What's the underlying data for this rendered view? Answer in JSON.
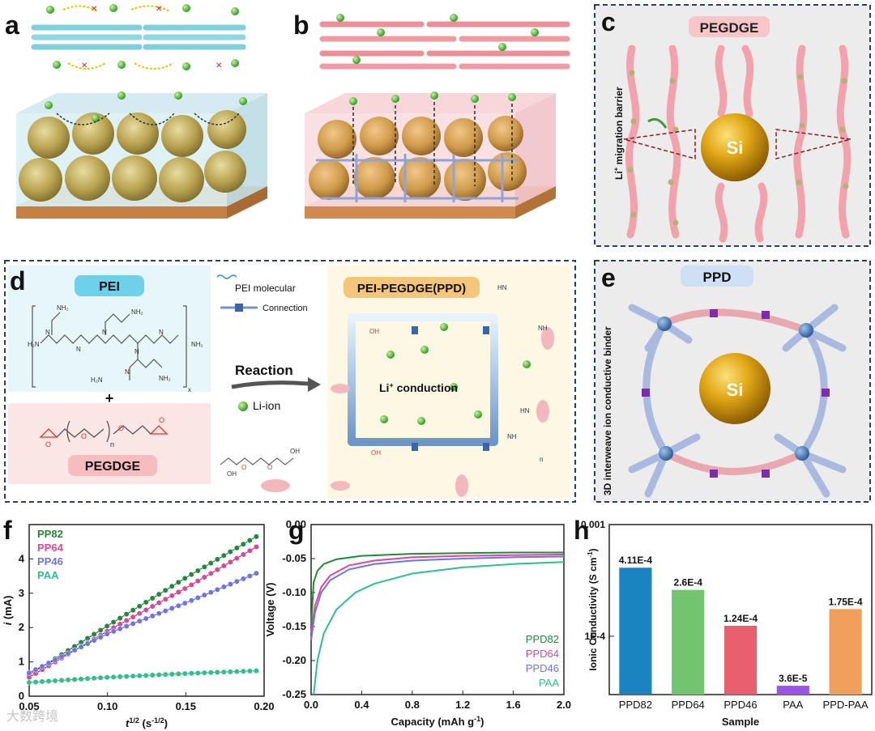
{
  "panels": {
    "a": {
      "label": "a"
    },
    "b": {
      "label": "b"
    },
    "c": {
      "label": "c",
      "title": "PEGDGE",
      "barrier_label": "Li",
      "barrier_sup": "+",
      "barrier_rest": " migration barrier",
      "particle": "Si"
    },
    "d": {
      "label": "d",
      "pei_title": "PEI",
      "plus": "+",
      "pegdge_title": "PEGDGE",
      "n_sub": "n",
      "legend_pei": "PEI molecular",
      "legend_connection": "Connection",
      "reaction": "Reaction",
      "li_ion": "Li-ion",
      "ppd_title": "PEI-PEGDGE(PPD)",
      "conduction": "Li",
      "conduction_sup": "+",
      "conduction_rest": " conduction",
      "nh2": "NH₂",
      "h2n": "H₂N",
      "n": "N",
      "nh": "NH",
      "hn": "HN",
      "oh": "OH",
      "o": "O",
      "sub_x": "x"
    },
    "e": {
      "label": "e",
      "title": "PPD",
      "side_text": "3D interweave ion conductive binder",
      "particle": "Si"
    }
  },
  "chart_data": [
    {
      "panel": "f",
      "type": "scatter",
      "xlabel_main": "t",
      "xlabel_sup": "1/2",
      "xlabel_unit": " (s",
      "xlabel_unit_sup": "-1/2",
      "xlabel_close": ")",
      "ylabel_main": "i",
      "ylabel_unit": " (mA)",
      "xlim": [
        0.05,
        0.2
      ],
      "ylim": [
        0,
        5
      ],
      "x_ticks": [
        "0.05",
        "0.10",
        "0.15",
        "0.20"
      ],
      "y_ticks": [
        "0",
        "1",
        "2",
        "3",
        "4"
      ],
      "series": [
        {
          "name": "PP82",
          "color": "#1f8a3a",
          "x": [
            0.05,
            0.1,
            0.15,
            0.195
          ],
          "values": [
            0.62,
            2.05,
            3.45,
            4.65
          ]
        },
        {
          "name": "PP64",
          "color": "#e0449a",
          "x": [
            0.05,
            0.1,
            0.15,
            0.195
          ],
          "values": [
            0.55,
            1.9,
            3.15,
            4.35
          ]
        },
        {
          "name": "PP46",
          "color": "#6f73e6",
          "x": [
            0.05,
            0.1,
            0.15,
            0.195
          ],
          "values": [
            0.68,
            1.82,
            2.72,
            3.58
          ]
        },
        {
          "name": "PAA",
          "color": "#2ec08a",
          "x": [
            0.05,
            0.1,
            0.15,
            0.195
          ],
          "values": [
            0.4,
            0.55,
            0.66,
            0.74
          ]
        }
      ]
    },
    {
      "panel": "g",
      "type": "line",
      "xlabel": "Capacity (mAh g",
      "xlabel_sup": "-1",
      "xlabel_close": ")",
      "ylabel": "Voltage (V)",
      "xlim": [
        0.0,
        2.0
      ],
      "ylim": [
        -0.25,
        0.0
      ],
      "x_ticks": [
        "0.0",
        "0.4",
        "0.8",
        "1.2",
        "1.6",
        "2.0"
      ],
      "y_ticks": [
        "0.00",
        "-0.05",
        "-0.10",
        "-0.15",
        "-0.20",
        "-0.25"
      ],
      "series": [
        {
          "name": "PPD82",
          "color": "#1f8a3a",
          "x": [
            0,
            0.02,
            0.05,
            0.1,
            0.2,
            0.4,
            0.8,
            1.2,
            1.6,
            2.0
          ],
          "values": [
            -0.15,
            -0.085,
            -0.068,
            -0.058,
            -0.051,
            -0.046,
            -0.043,
            -0.042,
            -0.041,
            -0.041
          ]
        },
        {
          "name": "PPD64",
          "color": "#e0449a",
          "x": [
            0,
            0.03,
            0.08,
            0.15,
            0.3,
            0.5,
            0.8,
            1.2,
            1.6,
            2.0
          ],
          "values": [
            -0.16,
            -0.12,
            -0.092,
            -0.075,
            -0.06,
            -0.053,
            -0.048,
            -0.046,
            -0.045,
            -0.044
          ]
        },
        {
          "name": "PPD46",
          "color": "#6f73e6",
          "x": [
            0,
            0.03,
            0.08,
            0.15,
            0.3,
            0.5,
            0.8,
            1.2,
            1.6,
            2.0
          ],
          "values": [
            -0.17,
            -0.13,
            -0.1,
            -0.082,
            -0.066,
            -0.058,
            -0.053,
            -0.05,
            -0.048,
            -0.047
          ]
        },
        {
          "name": "PAA",
          "color": "#2ec08a",
          "x": [
            0.02,
            0.05,
            0.1,
            0.2,
            0.35,
            0.5,
            0.8,
            1.2,
            1.6,
            2.0
          ],
          "values": [
            -0.25,
            -0.2,
            -0.16,
            -0.125,
            -0.1,
            -0.087,
            -0.072,
            -0.063,
            -0.058,
            -0.055
          ]
        }
      ]
    },
    {
      "panel": "h",
      "type": "bar",
      "yscale": "log",
      "xlabel": "Sample",
      "ylabel": "Ionic Conductivity (S cm",
      "ylabel_sup": "-1",
      "ylabel_close": ")",
      "ylim": [
        3e-05,
        0.001
      ],
      "y_ticks": [
        "0.001",
        "1E-4"
      ],
      "categories": [
        "PPD82",
        "PPD64",
        "PPD46",
        "PAA",
        "PPD-PAA"
      ],
      "values": [
        0.000411,
        0.00026,
        0.000124,
        3.6e-05,
        0.000175
      ],
      "data_labels": [
        "4.11E-4",
        "2.6E-4",
        "1.24E-4",
        "3.6E-5",
        "1.75E-4"
      ],
      "colors": [
        "#1b83c0",
        "#72c46e",
        "#e8606f",
        "#9b55e6",
        "#f0a05a"
      ]
    }
  ],
  "watermark": "大数跨境"
}
